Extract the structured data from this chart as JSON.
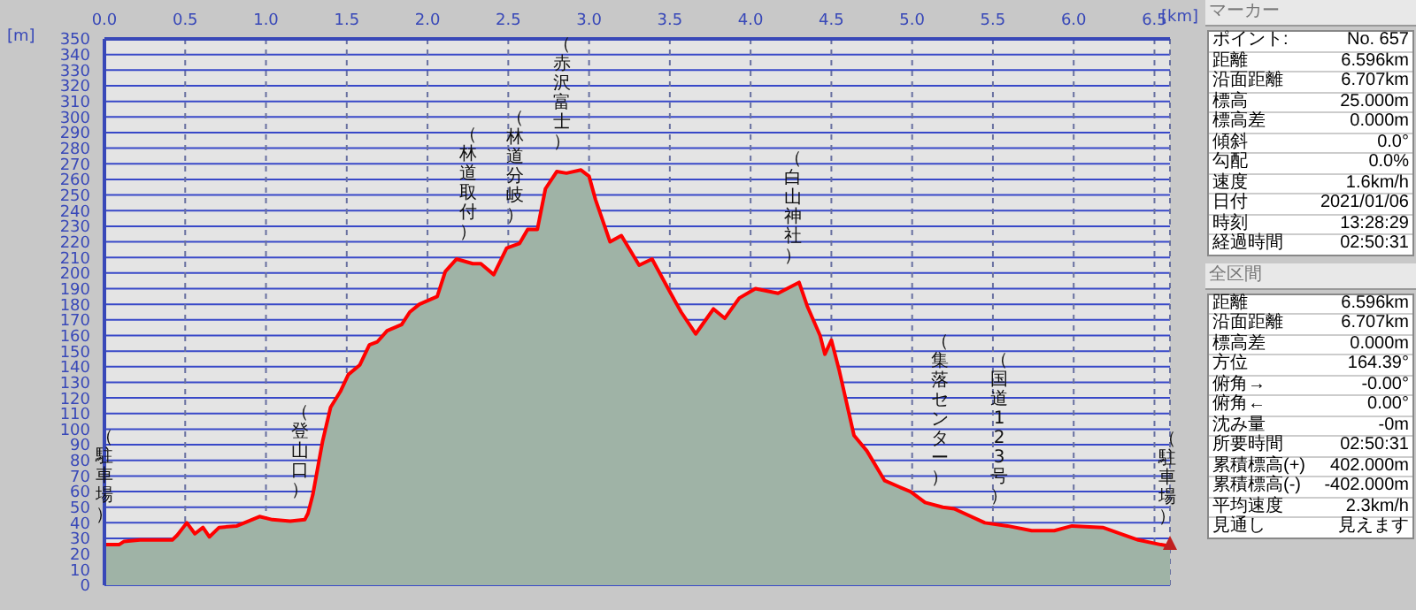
{
  "chart_data": [
    {
      "type": "area",
      "xlabel": "[km]",
      "ylabel": "[m]",
      "x": [
        0,
        0.09,
        0.12,
        0.22,
        0.31,
        0.42,
        0.45,
        0.51,
        0.56,
        0.61,
        0.65,
        0.71,
        0.82,
        0.89,
        0.96,
        1.04,
        1.15,
        1.24,
        1.26,
        1.29,
        1.35,
        1.4,
        1.46,
        1.51,
        1.58,
        1.64,
        1.69,
        1.75,
        1.84,
        1.89,
        1.95,
        2.06,
        2.11,
        2.18,
        2.28,
        2.33,
        2.41,
        2.49,
        2.57,
        2.62,
        2.68,
        2.73,
        2.8,
        2.86,
        2.95,
        3.0,
        3.04,
        3.13,
        3.2,
        3.31,
        3.39,
        3.5,
        3.57,
        3.66,
        3.77,
        3.84,
        3.93,
        4.03,
        4.17,
        4.3,
        4.35,
        4.43,
        4.46,
        4.5,
        4.55,
        4.64,
        4.72,
        4.83,
        4.92,
        4.99,
        5.08,
        5.19,
        5.26,
        5.45,
        5.59,
        5.74,
        5.88,
        5.99,
        6.18,
        6.4,
        6.54,
        6.596
      ],
      "series": [
        {
          "color": "#ff0000",
          "values": [
            26,
            26,
            28,
            29,
            29,
            29,
            32,
            40,
            33,
            37,
            31,
            37,
            38,
            41,
            44,
            42,
            41,
            42,
            46,
            58,
            92,
            114,
            124,
            135,
            141,
            154,
            156,
            163,
            167,
            175,
            180,
            185,
            201,
            209,
            206,
            206,
            199,
            216,
            219,
            228,
            228,
            254,
            265,
            264,
            266,
            262,
            247,
            220,
            224,
            205,
            209,
            188,
            175,
            161,
            177,
            171,
            184,
            190,
            187,
            194,
            179,
            160,
            148,
            157,
            137,
            96,
            86,
            67,
            63,
            60,
            53,
            50,
            49,
            40,
            38,
            35,
            35,
            38,
            37,
            29,
            26,
            25
          ]
        }
      ],
      "xlim": [
        0,
        6.596
      ],
      "ylim": [
        0,
        350
      ],
      "xticks": [
        {
          "value": 0,
          "label": "0.0"
        },
        0.5,
        {
          "value": 1,
          "label": "1.0"
        },
        1.5,
        {
          "value": 2,
          "label": "2.0"
        },
        2.5,
        {
          "value": 3,
          "label": "3.0"
        },
        3.5,
        {
          "value": 4,
          "label": "4.0"
        },
        4.5,
        {
          "value": 5,
          "label": "5.0"
        },
        5.5,
        {
          "value": 6,
          "label": "6.0"
        },
        6.5
      ],
      "yticks": [
        0,
        10,
        20,
        30,
        40,
        50,
        60,
        70,
        80,
        90,
        100,
        110,
        120,
        130,
        140,
        150,
        160,
        170,
        180,
        190,
        200,
        210,
        220,
        230,
        240,
        250,
        260,
        270,
        280,
        290,
        300,
        310,
        320,
        330,
        340,
        350
      ],
      "grid": true,
      "annotations": [
        {
          "text": "（駐車場）",
          "x": 0,
          "y": 26
        },
        {
          "text": "（登山口）",
          "x": 1.21,
          "y": 42
        },
        {
          "text": "（林道取付）",
          "x": 2.25,
          "y": 207
        },
        {
          "text": "（林道分岐）",
          "x": 2.54,
          "y": 218
        },
        {
          "text": "（赤沢富士）",
          "x": 2.83,
          "y": 265
        },
        {
          "text": "（白山神社）",
          "x": 4.26,
          "y": 192
        },
        {
          "text": "（集落センター）",
          "x": 5.17,
          "y": 50
        },
        {
          "text": "（国道123号）",
          "x": 5.54,
          "y": 38
        },
        {
          "text": "（駐車場）",
          "x": 6.58,
          "y": 25
        }
      ]
    },
    {
      "type": "other",
      "title": "マーカー",
      "annotations": [
        "ポイント:",
        "No. 657",
        "距離",
        "6.596km",
        "沿面距離",
        "6.707km",
        "標高",
        "25.000m",
        "標高差",
        "0.000m",
        "傾斜",
        "0.0°",
        "勾配",
        "0.0%",
        "速度",
        "1.6km/h",
        "日付",
        "2021/01/06",
        "時刻",
        "13:28:29",
        "経過時間",
        "02:50:31"
      ]
    },
    {
      "type": "other",
      "title": "全区間",
      "annotations": [
        "距離",
        "6.596km",
        "沿面距離",
        "6.707km",
        "標高差",
        "0.000m",
        "方位",
        "164.39°",
        "俯角→",
        "-0.00°",
        "俯角←",
        "0.00°",
        "沈み量",
        "-0m",
        "所要時間",
        "02:50:31",
        "累積標高(+)",
        "402.000m",
        "累積標高(-)",
        "-402.000m",
        "平均速度",
        "2.3km/h",
        "見通し",
        "見えます"
      ]
    }
  ]
}
